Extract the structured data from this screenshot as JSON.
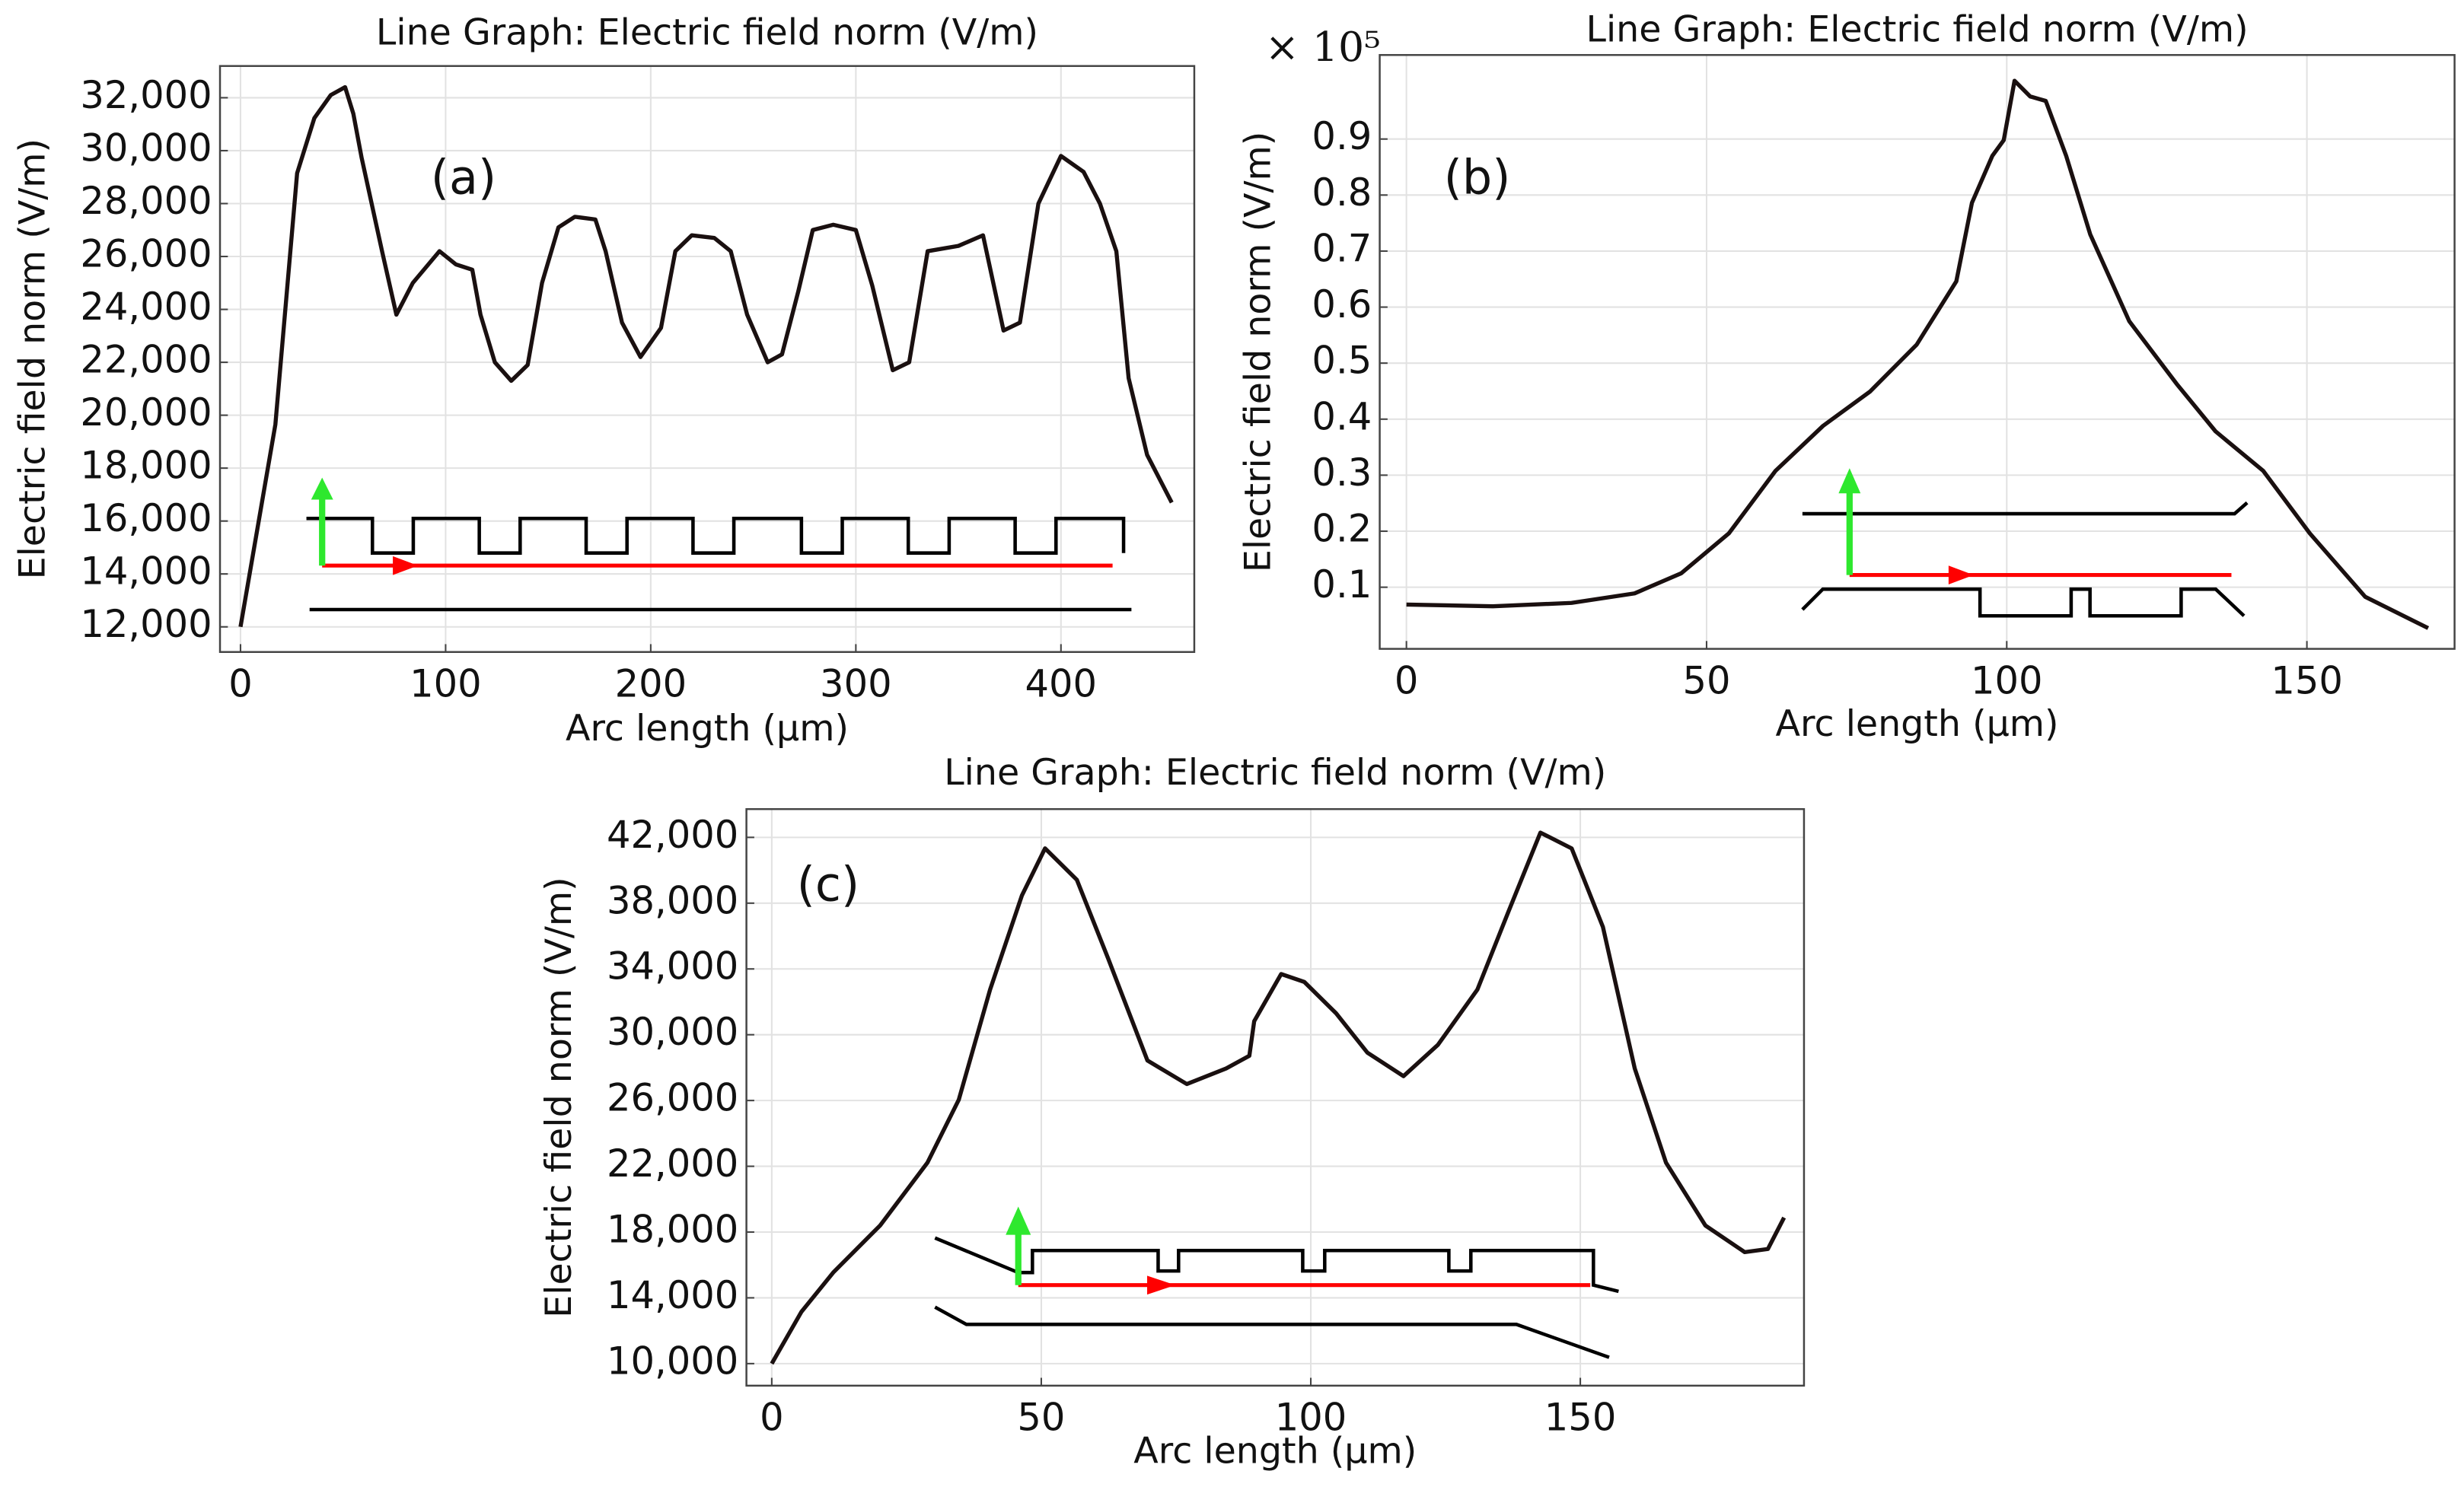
{
  "chart_data": [
    {
      "type": "line",
      "title": "Line Graph: Electric field norm (V/m)",
      "x_label": "Arc length (μm)",
      "y_label": "Electric field norm (V/m)",
      "annotation": "(a)",
      "color": "#1a1010",
      "grid": true,
      "x": [
        0,
        17,
        27.6,
        36,
        44,
        51,
        55,
        59,
        69,
        76,
        84,
        97,
        105,
        113,
        117,
        124,
        132,
        140,
        147,
        155,
        163,
        173,
        178,
        186,
        195,
        205,
        212,
        220,
        231,
        239,
        247,
        257,
        264,
        272,
        279,
        289,
        300,
        308,
        318,
        326,
        335,
        350,
        362,
        372,
        380,
        389,
        400,
        411,
        419,
        427,
        433,
        442,
        454
      ],
      "values": [
        12000,
        19650,
        29150,
        31230,
        32100,
        32400,
        31400,
        29750,
        26200,
        23800,
        25000,
        26200,
        25700,
        25500,
        23800,
        22000,
        21300,
        21900,
        25000,
        27100,
        27500,
        27400,
        26200,
        23500,
        22200,
        23300,
        26200,
        26800,
        26700,
        26200,
        23800,
        22000,
        22300,
        24700,
        27000,
        27200,
        27000,
        24900,
        21700,
        22000,
        26200,
        26400,
        26800,
        23200,
        23500,
        28000,
        29800,
        29200,
        28000,
        26200,
        21400,
        18500,
        16700
      ],
      "xlim": [
        -10,
        465
      ],
      "xticks": [
        0,
        100,
        200,
        300,
        400
      ],
      "ylim": [
        11050,
        33200
      ],
      "yticks": [
        {
          "value": 12000,
          "label": "12,000"
        },
        {
          "value": 14000,
          "label": "14,000"
        },
        {
          "value": 16000,
          "label": "16,000"
        },
        {
          "value": 18000,
          "label": "18,000"
        },
        {
          "value": 20000,
          "label": "20,000"
        },
        {
          "value": 22000,
          "label": "22,000"
        },
        {
          "value": 24000,
          "label": "24,000"
        },
        {
          "value": 26000,
          "label": "26,000"
        },
        {
          "value": 28000,
          "label": "28,000"
        },
        {
          "value": 30000,
          "label": "30,000"
        },
        {
          "value": 32000,
          "label": "32,000"
        }
      ]
    },
    {
      "type": "line",
      "title": "Line Graph: Electric field norm (V/m)",
      "x_label": "Arc length (μm)",
      "y_label": "Electric field norm (V/m)",
      "annotation": "(b)",
      "y_multiplier": "× 10⁵",
      "color": "#1a1010",
      "grid": true,
      "x": [
        0,
        14.4,
        27.5,
        38,
        45.8,
        53.7,
        61.5,
        69.4,
        77.2,
        85,
        91.6,
        94.2,
        97.6,
        99.5,
        101.3,
        103.9,
        106.5,
        109.9,
        113.9,
        120.4,
        128.3,
        134.8,
        142.7,
        150.5,
        159.7,
        170.2
      ],
      "values": [
        0.069,
        0.066,
        0.072,
        0.089,
        0.125,
        0.196,
        0.308,
        0.388,
        0.449,
        0.533,
        0.646,
        0.786,
        0.87,
        0.898,
        1.004,
        0.976,
        0.968,
        0.87,
        0.73,
        0.575,
        0.463,
        0.378,
        0.308,
        0.196,
        0.083,
        0.027
      ],
      "xlim": [
        -4.45,
        174.6
      ],
      "xticks": [
        0,
        50,
        100,
        150
      ],
      "ylim": [
        -0.01,
        1.05
      ],
      "yticks": [
        0.1,
        0.2,
        0.3,
        0.4,
        0.5,
        0.6,
        0.7,
        0.8,
        0.9
      ]
    },
    {
      "type": "line",
      "title": "Line Graph: Electric field norm (V/m)",
      "x_label": "Arc length (μm)",
      "y_label": "Electric field norm (V/m)",
      "annotation": "(c)",
      "color": "#1a1010",
      "grid": true,
      "x": [
        0,
        5.5,
        11.4,
        20.1,
        28.9,
        34.7,
        40.5,
        46.4,
        50.7,
        56.6,
        62.4,
        69.7,
        77,
        84.3,
        88.6,
        89.5,
        94.5,
        98.8,
        104.7,
        110.5,
        117.2,
        123.6,
        130.9,
        136.7,
        142.6,
        148.4,
        154.2,
        160.1,
        165.9,
        173.2,
        180.5,
        184.8,
        187.8
      ],
      "values": [
        10000,
        13150,
        15540,
        18400,
        22230,
        26050,
        32740,
        38460,
        41330,
        39420,
        34640,
        28430,
        27000,
        27950,
        28720,
        30820,
        33690,
        33210,
        31300,
        28910,
        27480,
        29390,
        32740,
        37510,
        42290,
        41330,
        36550,
        27950,
        22220,
        18400,
        16780,
        16970,
        18880
      ],
      "xlim": [
        -4.7,
        191.5
      ],
      "xticks": [
        0,
        50,
        100,
        150
      ],
      "ylim": [
        8660,
        43720
      ],
      "yticks": [
        {
          "value": 10000,
          "label": "10,000"
        },
        {
          "value": 14000,
          "label": "14,000"
        },
        {
          "value": 18000,
          "label": "18,000"
        },
        {
          "value": 22000,
          "label": "22,000"
        },
        {
          "value": 26000,
          "label": "26,000"
        },
        {
          "value": 30000,
          "label": "30,000"
        },
        {
          "value": 34000,
          "label": "34,000"
        },
        {
          "value": 38000,
          "label": "38,000"
        },
        {
          "value": 42000,
          "label": "42,000"
        }
      ]
    }
  ]
}
